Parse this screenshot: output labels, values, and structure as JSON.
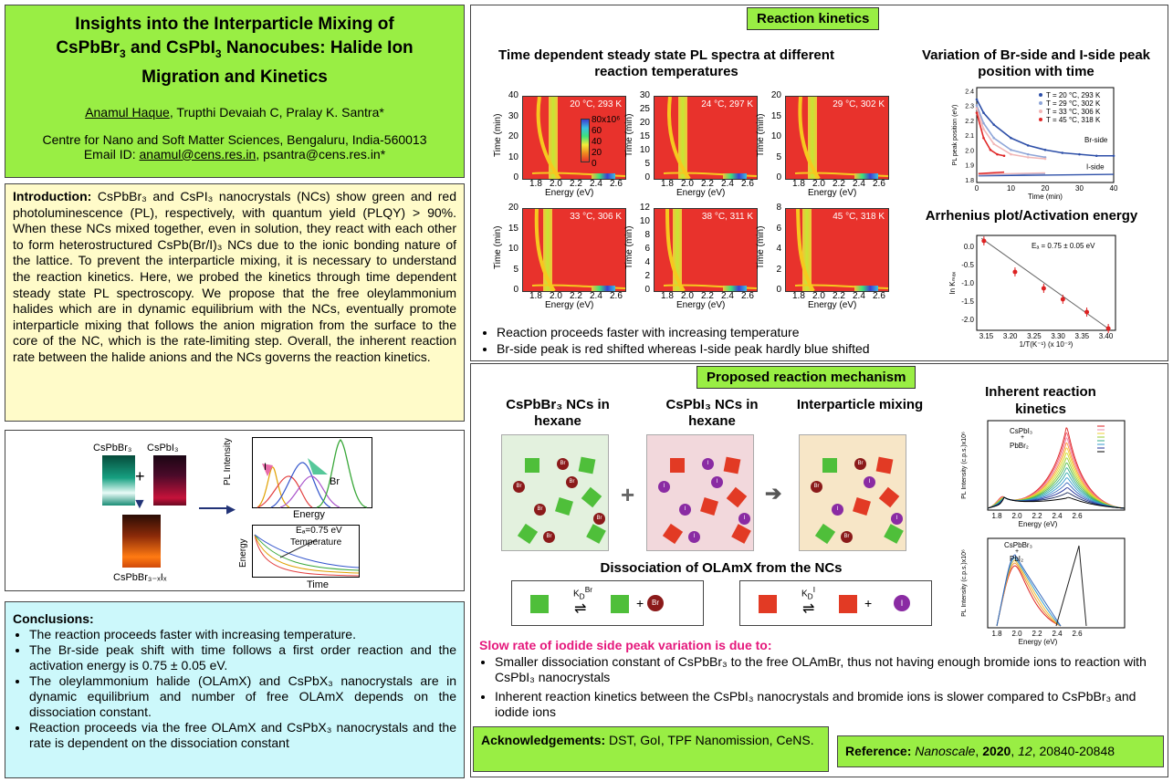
{
  "header": {
    "title_line1": "Insights into the Interparticle Mixing of",
    "title_line2_a": "CsPbBr",
    "title_line2_sub1": "3",
    "title_line2_b": " and CsPbI",
    "title_line2_sub2": "3",
    "title_line2_c": " Nanocubes: Halide Ion",
    "title_line3": "Migration and Kinetics",
    "author1": "Anamul Haque",
    "authors_rest": ", Trupthi  Devaiah C, Pralay K. Santra*",
    "affiliation": "Centre for Nano and Soft Matter Sciences, Bengaluru,  India-560013",
    "email_label": "Email ID:  ",
    "email1": "anamul@cens.res.in",
    "email_sep": ",  psantra@cens.res.in*"
  },
  "introduction": {
    "label": "Introduction:",
    "text": "CsPbBr₃ and CsPI₃ nanocrystals (NCs) show green and red photoluminescence (PL), respectively, with quantum yield (PLQY) > 90%. When these NCs mixed together, even in solution, they react with each other to form heterostructured CsPb(Br/I)₃ NCs due to the ionic bonding nature of the lattice. To prevent the interparticle mixing, it is necessary to understand the reaction kinetics. Here, we probed the kinetics through time dependent steady state PL spectroscopy. We propose that the free oleylammonium halides which are in dynamic equilibrium with the NCs, eventually promote interparticle mixing that follows the anion migration from the surface to the core of the NC, which is the rate-limiting step. Overall, the inherent reaction rate between the halide anions and the NCs governs the reaction kinetics."
  },
  "graphic": {
    "vial1": "CsPbBr₃",
    "vial2": "CsPbI₃",
    "plus": "+",
    "vial3": "CsPbBr₃₋ₓIₓ",
    "pl_ylabel": "PL Intensity",
    "pl_xlabel": "Energy",
    "label_I": "I",
    "label_Br": "Br",
    "ea": "Eₐ=0.75 eV",
    "temp": "Temperature",
    "e_ylabel": "Energy",
    "e_xlabel": "Time"
  },
  "conclusions": {
    "label": "Conclusions:",
    "items": [
      "The reaction proceeds faster with increasing temperature.",
      "The Br-side peak shift with time follows a first order reaction and the activation energy is 0.75 ± 0.05 eV.",
      "The oleylammonium halide (OLAmX) and CsPbX₃ nanocrystals are in dynamic equilibrium and number of free OLAmX depends on the dissociation constant.",
      "Reaction proceeds via the free OLAmX and CsPbX₃ nanocrystals and the rate is dependent on the dissociation constant"
    ]
  },
  "kinetics": {
    "label": "Reaction kinetics",
    "pl_title": "Time dependent steady state PL spectra at different reaction temperatures",
    "peak_title": "Variation of Br-side and I-side peak position with time",
    "arrhenius_title": "Arrhenius plot/Activation energy",
    "heatmaps": [
      {
        "label": "20 °C, 293 K",
        "yticks": [
          "40",
          "30",
          "20",
          "10",
          "0"
        ]
      },
      {
        "label": "24 °C, 297 K",
        "yticks": [
          "30",
          "25",
          "20",
          "15",
          "10",
          "5",
          "0"
        ]
      },
      {
        "label": "29 °C, 302 K",
        "yticks": [
          "20",
          "15",
          "10",
          "5",
          "0"
        ]
      },
      {
        "label": "33 °C, 306 K",
        "yticks": [
          "20",
          "15",
          "10",
          "5",
          "0"
        ]
      },
      {
        "label": "38 °C, 311 K",
        "yticks": [
          "12",
          "10",
          "8",
          "6",
          "4",
          "2",
          "0"
        ]
      },
      {
        "label": "45 °C, 318 K",
        "yticks": [
          "8",
          "6",
          "4",
          "2",
          "0"
        ]
      }
    ],
    "xticks": [
      "1.8",
      "2.0",
      "2.2",
      "2.4",
      "2.6"
    ],
    "energy_label": "Energy (eV)",
    "time_label": "Time (min)",
    "colorbar_ticks": [
      "80x10⁶",
      "60",
      "40",
      "20",
      "0"
    ],
    "bullets": [
      "Reaction proceeds faster with increasing temperature",
      "Br-side peak is red shifted whereas I-side peak hardly blue shifted"
    ],
    "peak_legend": [
      "T = 20 °C, 293 K",
      "T = 29 °C, 302 K",
      "T = 33 °C, 306 K",
      "T = 45 °C, 318 K"
    ],
    "peak_colors": [
      "#2d4fa8",
      "#8fa6d8",
      "#f1b7b7",
      "#e02828"
    ],
    "peak_ylabel": "PL peak position (eV)",
    "peak_xlabel": "Time (min)",
    "peak_yticks": [
      "2.4",
      "2.3",
      "2.2",
      "2.1",
      "2.0",
      "1.9",
      "1.8"
    ],
    "peak_xticks": [
      "0",
      "10",
      "20",
      "30",
      "40"
    ],
    "br_side": "Br-side",
    "i_side": "I-side",
    "arr_ea": "Eₐ = 0.75 ± 0.05  eV",
    "arr_ylabel": "ln Kₘₐₓ",
    "arr_xlabel": "1/T(K⁻¹) (x 10⁻³)",
    "arr_yticks": [
      "0.0",
      "-0.5",
      "-1.0",
      "-1.5",
      "-2.0"
    ],
    "arr_xticks": [
      "3.15",
      "3.20",
      "3.25",
      "3.30",
      "3.35",
      "3.40"
    ]
  },
  "chart_data": [
    {
      "type": "scatter",
      "title": "Arrhenius plot/Activation energy",
      "xlabel": "1/T(K⁻¹) (x 10⁻³)",
      "ylabel": "ln Kₘₐₓ",
      "x": [
        3.145,
        3.21,
        3.27,
        3.31,
        3.36,
        3.405
      ],
      "y": [
        0.15,
        -0.7,
        -1.15,
        -1.45,
        -1.8,
        -2.25
      ],
      "xlim": [
        3.13,
        3.42
      ],
      "ylim": [
        -2.3,
        0.3
      ]
    },
    {
      "type": "line",
      "title": "Variation of Br-side and I-side peak position with time",
      "xlabel": "Time (min)",
      "ylabel": "PL peak position (eV)",
      "xlim": [
        0,
        40
      ],
      "ylim": [
        1.78,
        2.42
      ],
      "series": [
        {
          "name": "T = 20 °C, 293 K",
          "x": [
            0,
            2,
            5,
            10,
            15,
            20,
            25,
            30,
            35,
            40
          ],
          "y": [
            2.34,
            2.25,
            2.17,
            2.08,
            2.03,
            2.0,
            1.98,
            1.97,
            1.96,
            1.96
          ]
        },
        {
          "name": "T = 29 °C, 302 K",
          "x": [
            0,
            2,
            5,
            10,
            15,
            20
          ],
          "y": [
            2.3,
            2.18,
            2.08,
            2.0,
            1.97,
            1.95
          ]
        },
        {
          "name": "T = 33 °C, 306 K",
          "x": [
            0,
            2,
            5,
            10,
            15,
            20
          ],
          "y": [
            2.28,
            2.14,
            2.04,
            1.97,
            1.95,
            1.94
          ]
        },
        {
          "name": "T = 45 °C, 318 K",
          "x": [
            0,
            2,
            4,
            6,
            8
          ],
          "y": [
            2.25,
            2.08,
            2.0,
            1.97,
            1.96
          ]
        }
      ]
    }
  ],
  "mechanism": {
    "label": "Proposed reaction mechanism",
    "col1": "CsPbBr₃ NCs in hexane",
    "col2": "CsPbI₃ NCs in hexane",
    "col3": "Interparticle mixing",
    "plus": "+",
    "arrow": "➔",
    "dissoc_title": "Dissociation of OLAmX from the NCs",
    "kbr": "K_D^Br",
    "ki": "K_D^I",
    "br": "Br",
    "i": "I",
    "slow_title": "Slow rate of iodide side peak variation is due to:",
    "slow_items": [
      "Smaller dissociation constant of CsPbBr₃ to the free OLAmBr, thus not having  enough bromide ions to reaction with CsPbI₃ nanocrystals",
      "Inherent  reaction kinetics between the CsPbI₃ nanocrystals  and bromide ions is slower compared to CsPbBr₃ and iodide ions"
    ]
  },
  "inherent": {
    "title": "Inherent reaction kinetics",
    "top_label1": "CsPbI₃",
    "top_label2": "+",
    "top_label3": "PbBr₂",
    "bottom_label1": "CsPbBr₃",
    "bottom_label2": "+",
    "bottom_label3": "PbI₂",
    "ylabel": "PL Intensity (c.p.s.)x10⁶",
    "xlabel": "Energy (eV)",
    "xticks": [
      "1.8",
      "2.0",
      "2.2",
      "2.4",
      "2.6"
    ]
  },
  "acknowledgements": {
    "label": "Acknowledgements:",
    "text": " DST, GoI, TPF Nanomission, CeNS."
  },
  "reference": {
    "label": "Reference:",
    "journal": "Nanoscale",
    "year": "2020",
    "volume": "12",
    "pages": ", 20840-20848"
  }
}
